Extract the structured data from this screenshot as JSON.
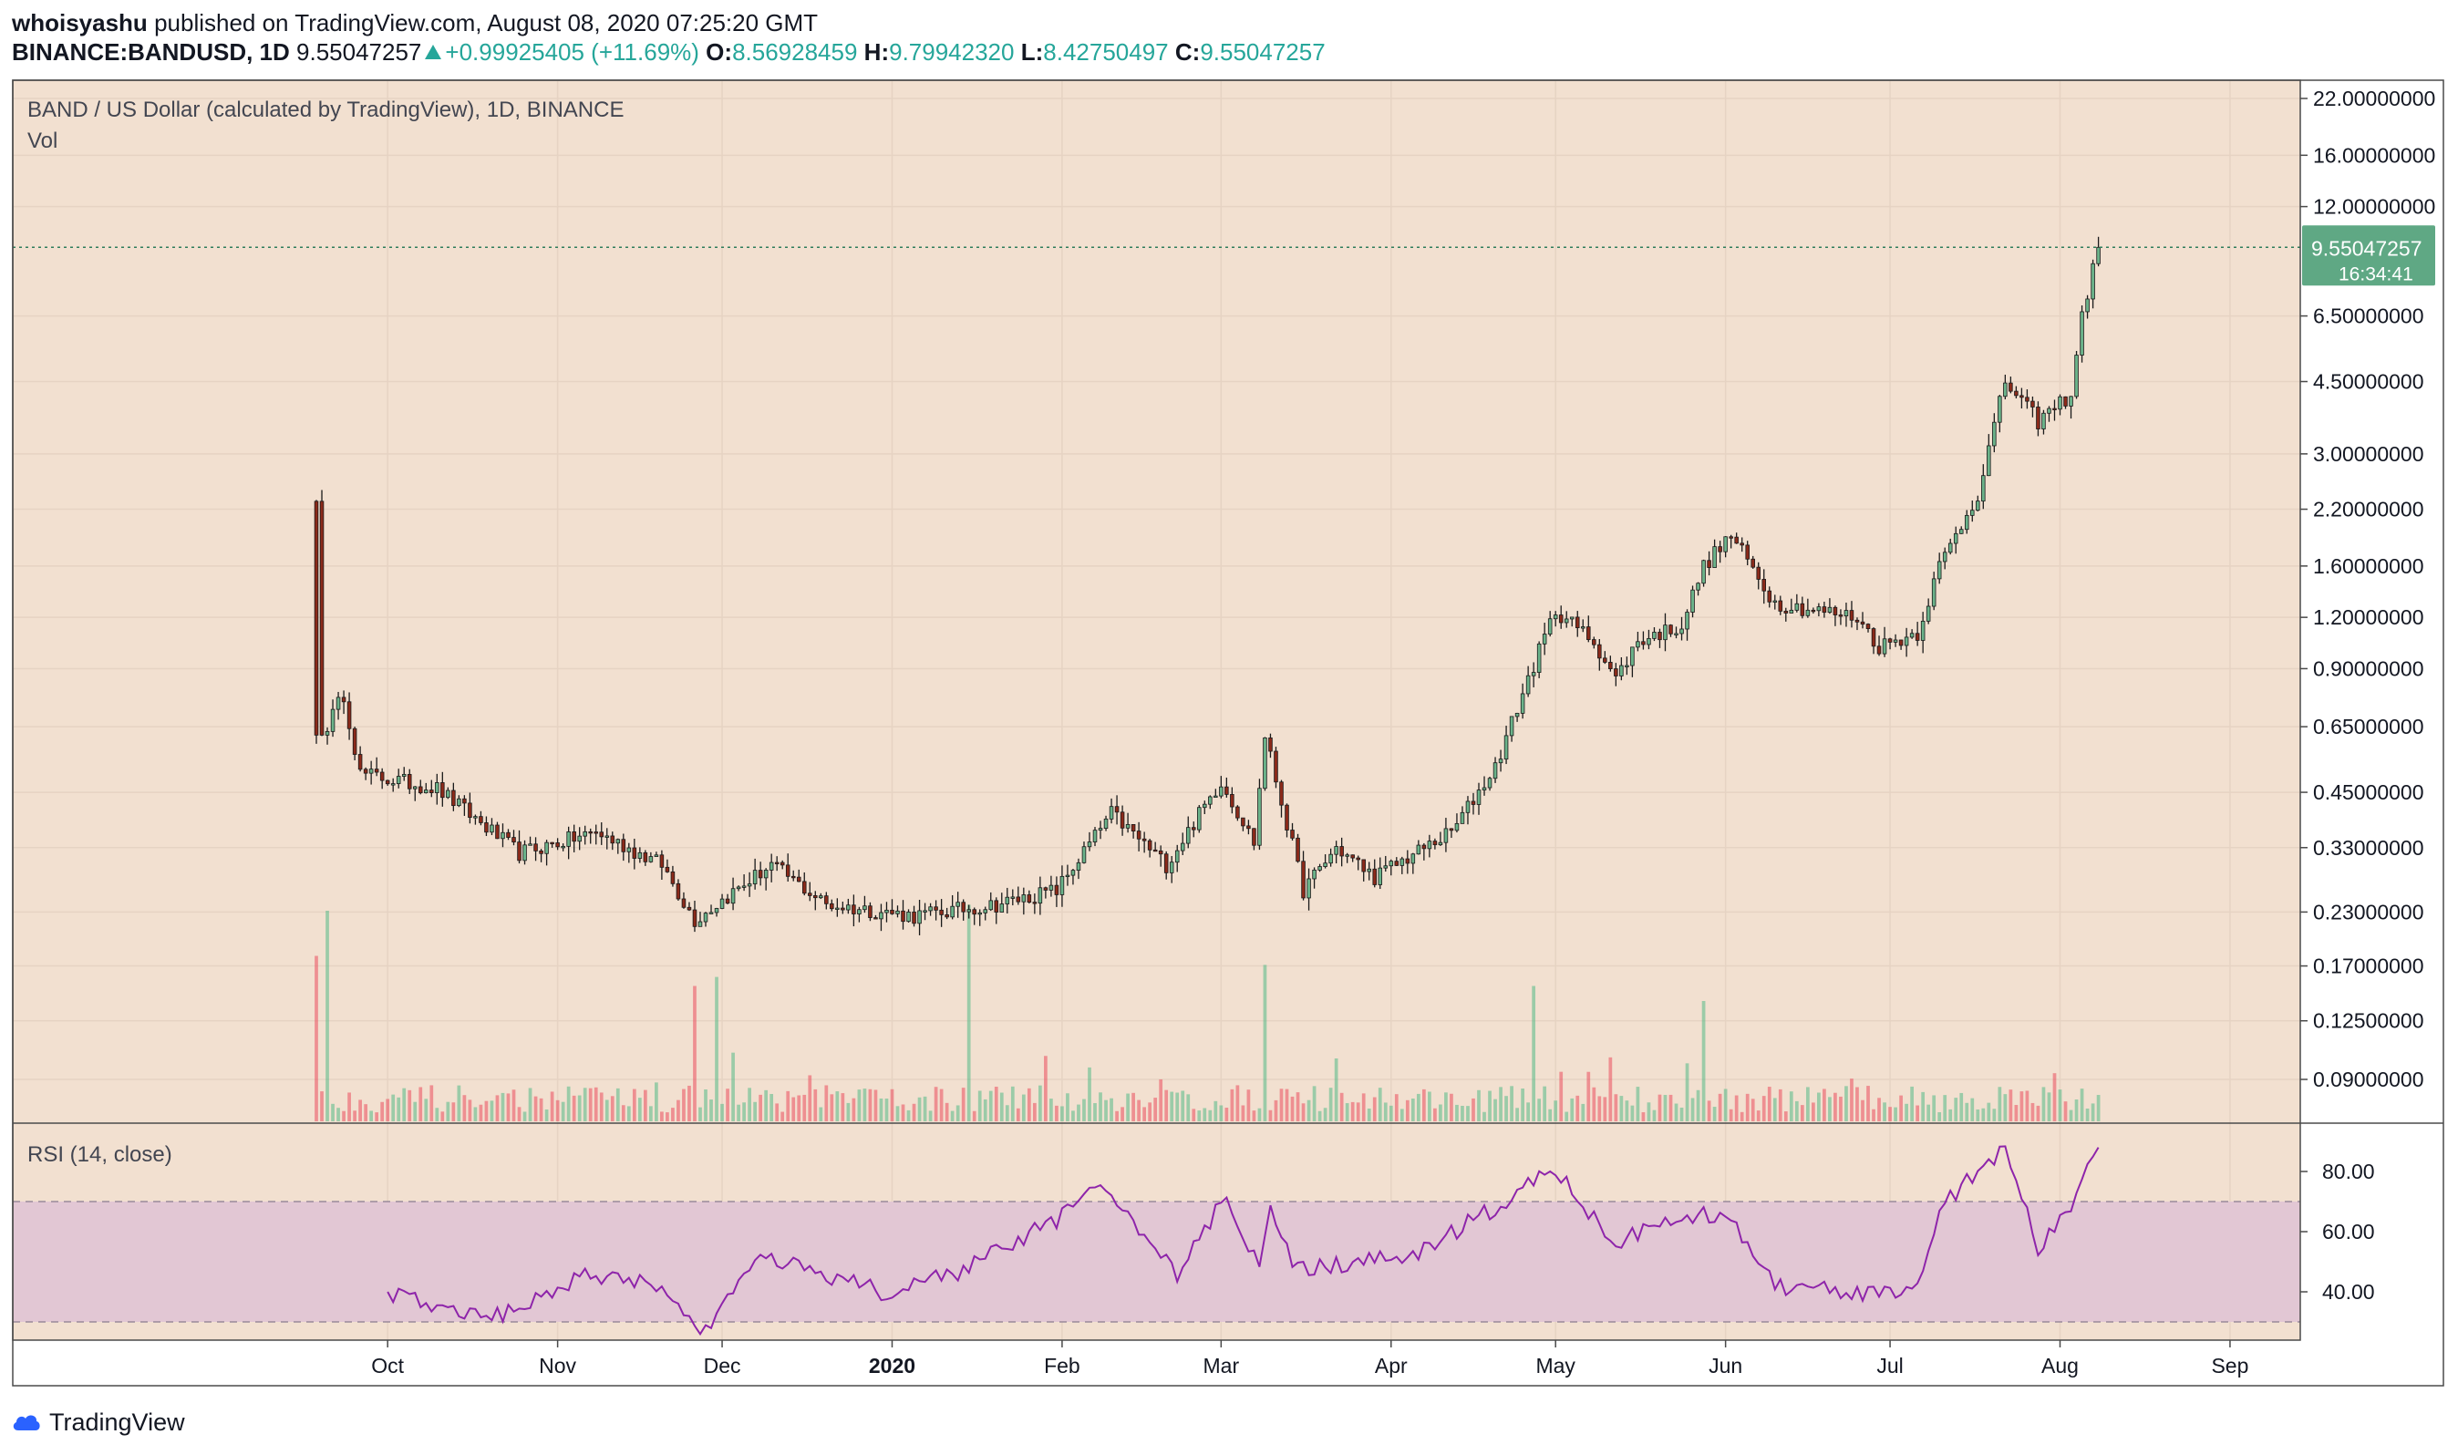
{
  "header": {
    "user": "whoisyashu",
    "published_text": "published on TradingView.com, August 08, 2020 07:25:20 GMT",
    "symbol": "BINANCE:BANDUSD, 1D",
    "last": "9.55047257",
    "change": "+0.99925405 (+11.69%)",
    "o_label": "O:",
    "o_value": "8.56928459",
    "h_label": "H:",
    "h_value": "9.79942320",
    "l_label": "L:",
    "l_value": "8.42750497",
    "c_label": "C:",
    "c_value": "9.55047257"
  },
  "pane": {
    "title": "BAND / US Dollar (calculated by TradingView), 1D, BINANCE",
    "vol_label": "Vol",
    "rsi_label": "RSI (14, close)"
  },
  "price_tag": {
    "value": "9.55047257",
    "countdown": "16:34:41"
  },
  "footer": {
    "brand": "TradingView"
  },
  "colors": {
    "background": "#f2e0d0",
    "up": "#53b987",
    "down": "#eb4d5c",
    "candle_up": "#6bb38a",
    "candle_down": "#8b2a1a",
    "rsi_line": "#8e24aa",
    "rsi_band": "#e2c7d4"
  },
  "chart_data": [
    {
      "type": "candlestick",
      "title": "BAND / US Dollar (calculated by TradingView), 1D, BINANCE",
      "y_scale": "log",
      "y_ticks": [
        "22.00000000",
        "16.00000000",
        "12.00000000",
        "6.50000000",
        "4.50000000",
        "3.00000000",
        "2.20000000",
        "1.60000000",
        "1.20000000",
        "0.90000000",
        "0.65000000",
        "0.45000000",
        "0.33000000",
        "0.23000000",
        "0.17000000",
        "0.12500000",
        "0.09000000"
      ],
      "x_ticks": [
        "Oct",
        "Nov",
        "Dec",
        "2020",
        "Feb",
        "Mar",
        "Apr",
        "May",
        "Jun",
        "Jul",
        "Aug",
        "Sep"
      ],
      "x_range": [
        "2019-09-18",
        "2020-09-05"
      ],
      "last_price": 9.55047257,
      "ohlc_anchors": [
        {
          "date": "2019-09-18",
          "close": 2.3
        },
        {
          "date": "2019-09-19",
          "close": 0.62
        },
        {
          "date": "2019-09-23",
          "close": 0.78
        },
        {
          "date": "2019-09-26",
          "close": 0.5
        },
        {
          "date": "2019-10-10",
          "close": 0.46
        },
        {
          "date": "2019-10-25",
          "close": 0.32
        },
        {
          "date": "2019-11-08",
          "close": 0.36
        },
        {
          "date": "2019-11-20",
          "close": 0.3
        },
        {
          "date": "2019-11-26",
          "close": 0.22
        },
        {
          "date": "2019-12-10",
          "close": 0.3
        },
        {
          "date": "2019-12-20",
          "close": 0.24
        },
        {
          "date": "2020-01-05",
          "close": 0.225
        },
        {
          "date": "2020-01-20",
          "close": 0.24
        },
        {
          "date": "2020-01-31",
          "close": 0.26
        },
        {
          "date": "2020-02-10",
          "close": 0.4
        },
        {
          "date": "2020-02-20",
          "close": 0.3
        },
        {
          "date": "2020-03-01",
          "close": 0.48
        },
        {
          "date": "2020-03-07",
          "close": 0.34
        },
        {
          "date": "2020-03-09",
          "close": 0.62
        },
        {
          "date": "2020-03-16",
          "close": 0.26
        },
        {
          "date": "2020-03-22",
          "close": 0.33
        },
        {
          "date": "2020-03-29",
          "close": 0.28
        },
        {
          "date": "2020-04-12",
          "close": 0.36
        },
        {
          "date": "2020-04-20",
          "close": 0.52
        },
        {
          "date": "2020-04-26",
          "close": 0.85
        },
        {
          "date": "2020-05-01",
          "close": 1.25
        },
        {
          "date": "2020-05-08",
          "close": 1.05
        },
        {
          "date": "2020-05-12",
          "close": 0.85
        },
        {
          "date": "2020-05-16",
          "close": 1.05
        },
        {
          "date": "2020-05-24",
          "close": 1.15
        },
        {
          "date": "2020-05-28",
          "close": 1.6
        },
        {
          "date": "2020-06-02",
          "close": 1.9
        },
        {
          "date": "2020-06-10",
          "close": 1.3
        },
        {
          "date": "2020-06-25",
          "close": 1.2
        },
        {
          "date": "2020-06-29",
          "close": 1.02
        },
        {
          "date": "2020-07-06",
          "close": 1.1
        },
        {
          "date": "2020-07-10",
          "close": 1.6
        },
        {
          "date": "2020-07-17",
          "close": 2.4
        },
        {
          "date": "2020-07-22",
          "close": 4.5
        },
        {
          "date": "2020-07-28",
          "close": 3.6
        },
        {
          "date": "2020-08-03",
          "close": 4.2
        },
        {
          "date": "2020-08-05",
          "close": 6.5
        },
        {
          "date": "2020-08-08",
          "close": 9.55
        }
      ]
    },
    {
      "type": "bar",
      "title": "Vol",
      "spikes": [
        {
          "date": "2019-09-18",
          "relative": 0.55
        },
        {
          "date": "2019-09-20",
          "relative": 0.7
        },
        {
          "date": "2019-11-26",
          "relative": 0.45
        },
        {
          "date": "2019-11-30",
          "relative": 0.48
        },
        {
          "date": "2020-01-15",
          "relative": 0.72
        },
        {
          "date": "2020-03-09",
          "relative": 0.52
        },
        {
          "date": "2020-04-27",
          "relative": 0.45
        },
        {
          "date": "2020-05-28",
          "relative": 0.4
        }
      ]
    },
    {
      "type": "line",
      "title": "RSI (14, close)",
      "y_ticks": [
        "80.00",
        "60.00",
        "40.00"
      ],
      "band": [
        30,
        70
      ],
      "anchors": [
        {
          "date": "2019-10-01",
          "value": 40
        },
        {
          "date": "2019-10-20",
          "value": 31
        },
        {
          "date": "2019-11-05",
          "value": 45
        },
        {
          "date": "2019-11-18",
          "value": 44
        },
        {
          "date": "2019-11-28",
          "value": 26
        },
        {
          "date": "2019-12-08",
          "value": 52
        },
        {
          "date": "2020-01-01",
          "value": 39
        },
        {
          "date": "2020-01-15",
          "value": 48
        },
        {
          "date": "2020-02-01",
          "value": 65
        },
        {
          "date": "2020-02-08",
          "value": 76
        },
        {
          "date": "2020-02-22",
          "value": 45
        },
        {
          "date": "2020-03-02",
          "value": 72
        },
        {
          "date": "2020-03-08",
          "value": 48
        },
        {
          "date": "2020-03-10",
          "value": 68
        },
        {
          "date": "2020-03-15",
          "value": 47
        },
        {
          "date": "2020-04-05",
          "value": 52
        },
        {
          "date": "2020-04-20",
          "value": 68
        },
        {
          "date": "2020-04-30",
          "value": 82
        },
        {
          "date": "2020-05-12",
          "value": 56
        },
        {
          "date": "2020-05-20",
          "value": 62
        },
        {
          "date": "2020-06-01",
          "value": 67
        },
        {
          "date": "2020-06-10",
          "value": 42
        },
        {
          "date": "2020-06-25",
          "value": 40
        },
        {
          "date": "2020-07-06",
          "value": 40
        },
        {
          "date": "2020-07-10",
          "value": 68
        },
        {
          "date": "2020-07-22",
          "value": 88
        },
        {
          "date": "2020-07-28",
          "value": 54
        },
        {
          "date": "2020-08-04",
          "value": 72
        },
        {
          "date": "2020-08-08",
          "value": 88
        }
      ]
    }
  ]
}
